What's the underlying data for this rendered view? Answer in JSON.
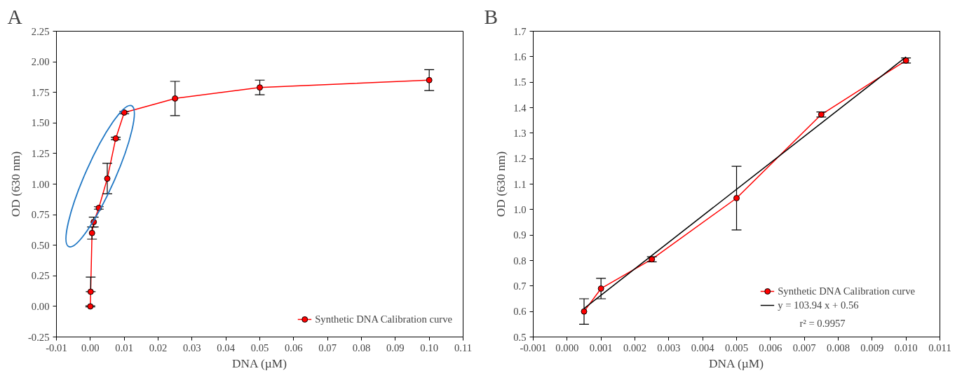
{
  "chart_data": [
    {
      "type": "line",
      "title": "A",
      "xlabel": "DNA (µM)",
      "ylabel": "OD (630 nm)",
      "x": [
        0,
        0.0001,
        0.0005,
        0.001,
        0.0025,
        0.005,
        0.0075,
        0.01,
        0.025,
        0.05,
        0.1
      ],
      "series": [
        {
          "name": "Synthetic DNA Calibration curve",
          "color": "#ff0000",
          "values": [
            0,
            0.12,
            0.6,
            0.69,
            0.805,
            1.045,
            1.373,
            1.585,
            1.7,
            1.79,
            1.85
          ],
          "errors": [
            0.005,
            [
              0.12,
              0.24
            ],
            0.05,
            0.04,
            0.01,
            0.125,
            0.01,
            0.01,
            0.14,
            0.06,
            0.085
          ]
        }
      ],
      "marker": "circle",
      "line_style": "solid",
      "legend": "bottom right",
      "grid": false,
      "xlim": [
        -0.01,
        0.11
      ],
      "ylim": [
        -0.25,
        2.25
      ],
      "xticks": [
        -0.01,
        {
          "value": 0,
          "label": "0.00"
        },
        0.01,
        0.02,
        0.03,
        0.04,
        0.05,
        0.06,
        0.07,
        0.08,
        0.09,
        {
          "value": 0.1,
          "label": "0.10"
        },
        0.11
      ],
      "yticks": [
        -0.25,
        {
          "value": 0,
          "label": "0.00"
        },
        0.25,
        {
          "value": 0.5,
          "label": "0.50"
        },
        0.75,
        {
          "value": 1,
          "label": "1.00"
        },
        1.25,
        {
          "value": 1.5,
          "label": "1.50"
        },
        1.75,
        {
          "value": 2,
          "label": "2.00"
        },
        2.25
      ]
    },
    {
      "type": "line",
      "title": "B",
      "xlabel": "DNA (µM)",
      "ylabel": "OD (630 nm)",
      "x": [
        0.0005,
        0.001,
        0.0025,
        0.005,
        0.0075,
        0.01
      ],
      "series": [
        {
          "name": "Synthetic DNA Calibration curve",
          "color": "#ff0000",
          "values": [
            0.6,
            0.69,
            0.805,
            1.045,
            1.373,
            1.585
          ],
          "errors": [
            0.05,
            0.04,
            0.01,
            0.125,
            0.01,
            0.01
          ]
        },
        {
          "name": "y = 103.94 x + 0.56",
          "color": "#000000",
          "type": "line",
          "marker": "none",
          "x": [
            0.0005,
            0.01
          ],
          "values": [
            0.612,
            1.599
          ]
        }
      ],
      "annotations": [
        "r² = 0.9957"
      ],
      "marker": "circle",
      "line_style": "solid",
      "legend": "bottom right",
      "grid": false,
      "xlim": [
        -0.001,
        0.011
      ],
      "ylim": [
        0.5,
        1.7
      ],
      "xticks": [
        -0.001,
        {
          "value": 0,
          "label": "0.000"
        },
        0.001,
        0.002,
        0.003,
        0.004,
        0.005,
        0.006,
        0.007,
        0.008,
        0.009,
        {
          "value": 0.01,
          "label": "0.010"
        },
        0.011
      ],
      "yticks": [
        0.5,
        0.6,
        0.7,
        0.8,
        0.9,
        {
          "value": 1.0,
          "label": "1.0"
        },
        1.1,
        1.2,
        1.3,
        1.4,
        1.5,
        1.6,
        1.7
      ]
    }
  ]
}
